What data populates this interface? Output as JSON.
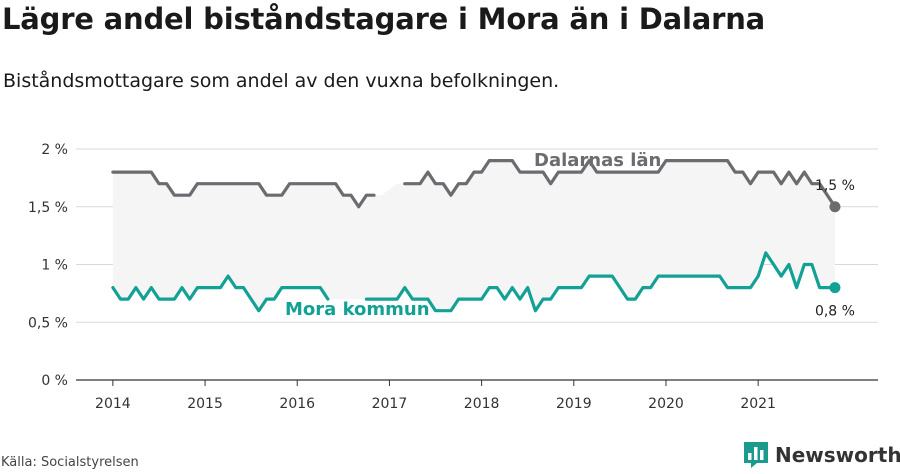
{
  "header": {
    "title": "Lägre andel biståndstagare i Mora än i Dalarna",
    "subtitle": "Biståndsmottagare som andel av den vuxna befolkningen."
  },
  "footer": {
    "source": "Källa: Socialstyrelsen",
    "brand": "Newsworthy",
    "brand_color": "#1b9a8e",
    "brand_icon": "bar-chart-logo-icon"
  },
  "chart_data": {
    "type": "line",
    "x_unit": "year",
    "xlim": [
      2013.6,
      2022.3
    ],
    "ylim": [
      0,
      2
    ],
    "x_ticks": [
      2014,
      2015,
      2016,
      2017,
      2018,
      2019,
      2020,
      2021
    ],
    "x_tick_labels": [
      "2014",
      "2015",
      "2016",
      "2017",
      "2018",
      "2019",
      "2020",
      "2021"
    ],
    "y_ticks": [
      0,
      0.5,
      1,
      1.5,
      2
    ],
    "y_tick_labels": [
      "0 %",
      "0,5 %",
      "1 %",
      "1,5 %",
      "2 %"
    ],
    "grid": true,
    "series": [
      {
        "name": "Dalarnas län",
        "color": "#6b6b70",
        "label_color": "#6b6b70",
        "end_label": "1,5 %",
        "fill_to_series": 1,
        "fill_color": "#f5f5f5",
        "x": [
          2014.0,
          2014.083,
          2014.167,
          2014.25,
          2014.333,
          2014.417,
          2014.5,
          2014.583,
          2014.667,
          2014.75,
          2014.833,
          2014.917,
          2015.0,
          2015.083,
          2015.167,
          2015.25,
          2015.333,
          2015.417,
          2015.5,
          2015.583,
          2015.667,
          2015.75,
          2015.833,
          2015.917,
          2016.0,
          2016.083,
          2016.167,
          2016.25,
          2016.333,
          2016.417,
          2016.5,
          2016.583,
          2016.667,
          2016.75,
          2016.833,
          2016.917,
          2017.0,
          2017.083,
          2017.167,
          2017.25,
          2017.333,
          2017.417,
          2017.5,
          2017.583,
          2017.667,
          2017.75,
          2017.833,
          2017.917,
          2018.0,
          2018.083,
          2018.167,
          2018.25,
          2018.333,
          2018.417,
          2018.5,
          2018.583,
          2018.667,
          2018.75,
          2018.833,
          2018.917,
          2019.0,
          2019.083,
          2019.167,
          2019.25,
          2019.333,
          2019.417,
          2019.5,
          2019.583,
          2019.667,
          2019.75,
          2019.833,
          2019.917,
          2020.0,
          2020.083,
          2020.167,
          2020.25,
          2020.333,
          2020.417,
          2020.5,
          2020.583,
          2020.667,
          2020.75,
          2020.833,
          2020.917,
          2021.0,
          2021.083,
          2021.167,
          2021.25,
          2021.333,
          2021.417,
          2021.5,
          2021.583,
          2021.667,
          2021.75,
          2021.833
        ],
        "y": [
          1.8,
          1.8,
          1.8,
          1.8,
          1.8,
          1.8,
          1.7,
          1.7,
          1.6,
          1.6,
          1.6,
          1.7,
          1.7,
          1.7,
          1.7,
          1.7,
          1.7,
          1.7,
          1.7,
          1.7,
          1.6,
          1.6,
          1.6,
          1.7,
          1.7,
          1.7,
          1.7,
          1.7,
          1.7,
          1.7,
          1.6,
          1.6,
          1.5,
          1.6,
          1.6,
          null,
          null,
          null,
          1.7,
          1.7,
          1.7,
          1.8,
          1.7,
          1.7,
          1.6,
          1.7,
          1.7,
          1.8,
          1.8,
          1.9,
          1.9,
          1.9,
          1.9,
          1.8,
          1.8,
          1.8,
          1.8,
          1.7,
          1.8,
          1.8,
          1.8,
          1.8,
          1.9,
          1.8,
          1.8,
          1.8,
          1.8,
          1.8,
          1.8,
          1.8,
          1.8,
          1.8,
          1.9,
          1.9,
          1.9,
          1.9,
          1.9,
          1.9,
          1.9,
          1.9,
          1.9,
          1.8,
          1.8,
          1.7,
          1.8,
          1.8,
          1.8,
          1.7,
          1.8,
          1.7,
          1.8,
          1.7,
          1.7,
          1.6,
          1.5
        ]
      },
      {
        "name": "Mora kommun",
        "color": "#14a195",
        "label_color": "#14a195",
        "end_label": "0,8 %",
        "x": [
          2014.0,
          2014.083,
          2014.167,
          2014.25,
          2014.333,
          2014.417,
          2014.5,
          2014.583,
          2014.667,
          2014.75,
          2014.833,
          2014.917,
          2015.0,
          2015.083,
          2015.167,
          2015.25,
          2015.333,
          2015.417,
          2015.5,
          2015.583,
          2015.667,
          2015.75,
          2015.833,
          2015.917,
          2016.0,
          2016.083,
          2016.167,
          2016.25,
          2016.333,
          2016.417,
          2016.5,
          2016.583,
          2016.667,
          2016.75,
          2016.833,
          2016.917,
          2017.0,
          2017.083,
          2017.167,
          2017.25,
          2017.333,
          2017.417,
          2017.5,
          2017.583,
          2017.667,
          2017.75,
          2017.833,
          2017.917,
          2018.0,
          2018.083,
          2018.167,
          2018.25,
          2018.333,
          2018.417,
          2018.5,
          2018.583,
          2018.667,
          2018.75,
          2018.833,
          2018.917,
          2019.0,
          2019.083,
          2019.167,
          2019.25,
          2019.333,
          2019.417,
          2019.5,
          2019.583,
          2019.667,
          2019.75,
          2019.833,
          2019.917,
          2020.0,
          2020.083,
          2020.167,
          2020.25,
          2020.333,
          2020.417,
          2020.5,
          2020.583,
          2020.667,
          2020.75,
          2020.833,
          2020.917,
          2021.0,
          2021.083,
          2021.167,
          2021.25,
          2021.333,
          2021.417,
          2021.5,
          2021.583,
          2021.667,
          2021.75,
          2021.833
        ],
        "y": [
          0.8,
          0.7,
          0.7,
          0.8,
          0.7,
          0.8,
          0.7,
          0.7,
          0.7,
          0.8,
          0.7,
          0.8,
          0.8,
          0.8,
          0.8,
          0.9,
          0.8,
          0.8,
          0.7,
          0.6,
          0.7,
          0.7,
          0.8,
          0.8,
          0.8,
          0.8,
          0.8,
          0.8,
          0.7,
          null,
          null,
          null,
          null,
          0.7,
          0.7,
          0.7,
          0.7,
          0.7,
          0.8,
          0.7,
          0.7,
          0.7,
          0.6,
          0.6,
          0.6,
          0.7,
          0.7,
          0.7,
          0.7,
          0.8,
          0.8,
          0.7,
          0.8,
          0.7,
          0.8,
          0.6,
          0.7,
          0.7,
          0.8,
          0.8,
          0.8,
          0.8,
          0.9,
          0.9,
          0.9,
          0.9,
          0.8,
          0.7,
          0.7,
          0.8,
          0.8,
          0.9,
          0.9,
          0.9,
          0.9,
          0.9,
          0.9,
          0.9,
          0.9,
          0.9,
          0.8,
          0.8,
          0.8,
          0.8,
          0.9,
          1.1,
          1.0,
          0.9,
          1.0,
          0.8,
          1.0,
          1.0,
          0.8,
          0.8,
          0.8
        ]
      }
    ]
  }
}
